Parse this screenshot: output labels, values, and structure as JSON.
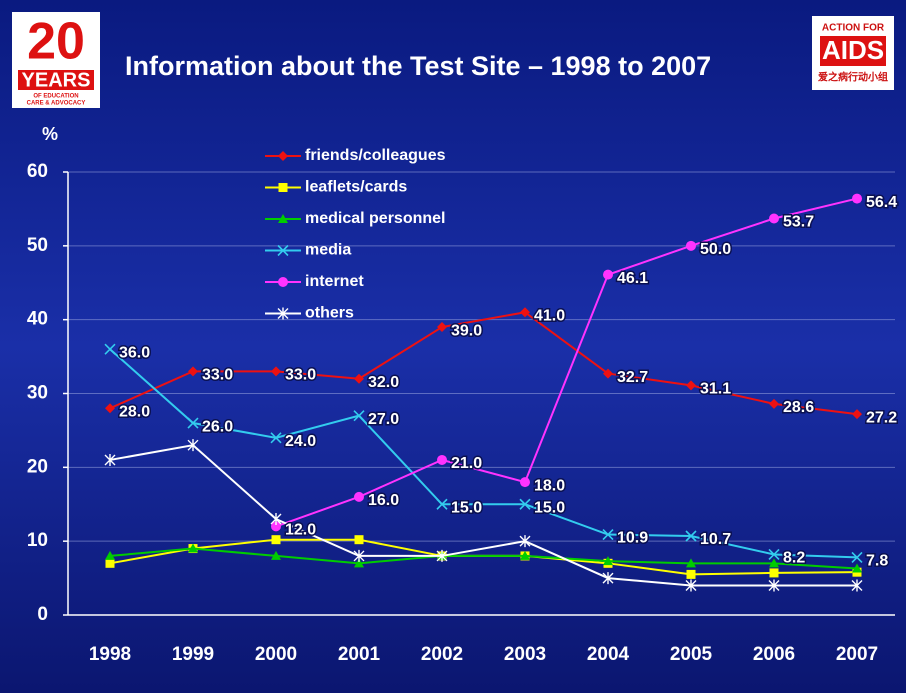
{
  "chart_data": {
    "type": "line",
    "title": "Information about the Test Site – 1998 to 2007",
    "y_label": "%",
    "categories": [
      "1998",
      "1999",
      "2000",
      "2001",
      "2002",
      "2003",
      "2004",
      "2005",
      "2006",
      "2007"
    ],
    "ylim": [
      0,
      60
    ],
    "yticks": [
      0,
      10,
      20,
      30,
      40,
      50,
      60
    ],
    "grid": true,
    "legend": "top-left",
    "series": [
      {
        "name": "friends/colleagues",
        "color": "#ee1111",
        "marker": "diamond",
        "values": [
          28,
          33,
          33,
          32,
          39,
          41,
          32.7,
          31.1,
          28.6,
          27.2
        ],
        "value_labels": [
          "28.0",
          "33.0",
          "33.0",
          "32.0",
          "39.0",
          "41.0",
          "32.7",
          "31.1",
          "28.6",
          "27.2"
        ]
      },
      {
        "name": "leaflets/cards",
        "color": "#ffff00",
        "marker": "square",
        "values": [
          7,
          9,
          10.2,
          10.2,
          8,
          8,
          7,
          5.5,
          5.7,
          5.8
        ]
      },
      {
        "name": "medical personnel",
        "color": "#00cc00",
        "marker": "triangle",
        "values": [
          8,
          9,
          8,
          7,
          8,
          8,
          7.3,
          7,
          7,
          6.3
        ]
      },
      {
        "name": "media",
        "color": "#33ccee",
        "marker": "x",
        "values": [
          36,
          26,
          24,
          27,
          15,
          15,
          10.9,
          10.7,
          8.2,
          7.8
        ],
        "value_labels": [
          "36.0",
          "26.0",
          "24.0",
          "27.0",
          "15.0",
          "15.0",
          "10.9",
          "10.7",
          "8.2",
          "7.8"
        ]
      },
      {
        "name": "internet",
        "color": "#ff33ff",
        "marker": "circle",
        "values": [
          null,
          null,
          12,
          16,
          21,
          18,
          46.1,
          50,
          53.7,
          56.4
        ],
        "value_labels": [
          null,
          null,
          "12.0",
          "16.0",
          "21.0",
          "18.0",
          "46.1",
          "50.0",
          "53.7",
          "56.4"
        ]
      },
      {
        "name": "others",
        "color": "#ffffff",
        "marker": "star",
        "values": [
          21,
          23,
          13,
          8,
          8,
          10,
          5,
          4,
          4,
          4
        ]
      }
    ]
  },
  "logos": {
    "left": {
      "number": "20",
      "word": "YEARS",
      "line1": "OF EDUCATION",
      "line2": "CARE & ADVOCACY"
    },
    "right": {
      "top": "ACTION FOR",
      "name": "AIDS",
      "chinese": "爱之病行动小组"
    }
  }
}
